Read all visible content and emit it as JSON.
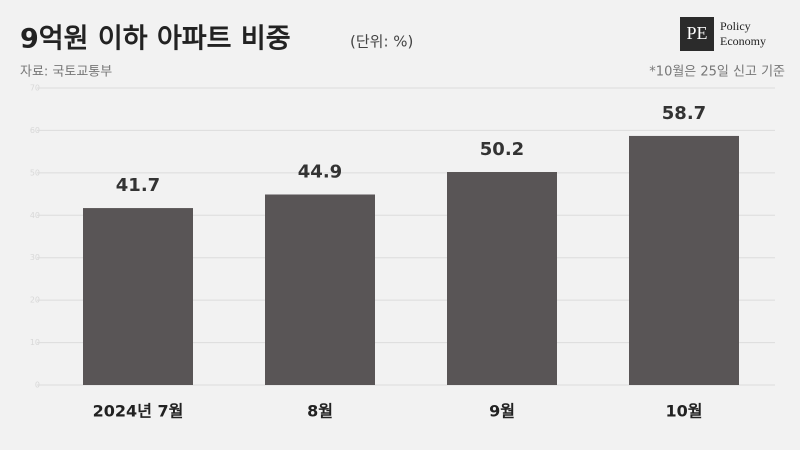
{
  "chart_data": {
    "type": "bar",
    "title": "9억원 이하 아파트 비중",
    "subtitle": "(단위: %)",
    "source": "자료: 국토교통부",
    "note": "*10월은 25일 신고 기준",
    "logo_mark": "PE",
    "logo": [
      "Policy",
      "Economy"
    ],
    "categories": [
      "2024년 7월",
      "8월",
      "9월",
      "10월"
    ],
    "values": [
      41.7,
      44.9,
      50.2,
      58.7
    ],
    "color": "#595556",
    "ylim": [
      0,
      70
    ],
    "yticks": [
      0,
      10,
      20,
      30,
      40,
      50,
      60,
      70
    ],
    "grid": true
  }
}
